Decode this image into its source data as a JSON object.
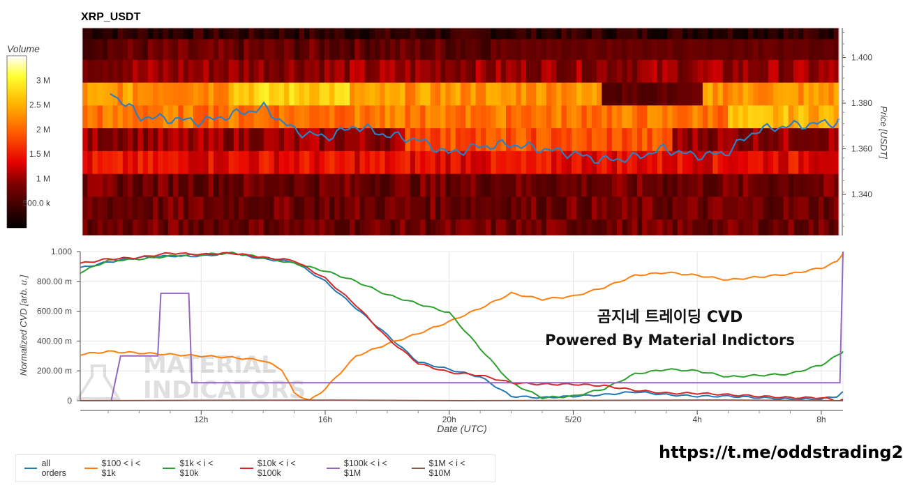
{
  "heatmap": {
    "title": "XRP_USDT",
    "colorbar": {
      "label": "Volume",
      "ticks": [
        "3 M",
        "2.5 M",
        "2 M",
        "1.5 M",
        "1 M",
        "500.0 k"
      ],
      "tick_values": [
        3.0,
        2.5,
        2.0,
        1.5,
        1.0,
        0.5
      ]
    },
    "price_axis": {
      "label": "Price [USDT]",
      "ticks": [
        "1.400",
        "1.380",
        "1.360",
        "1.340"
      ],
      "tick_values": [
        1.4,
        1.38,
        1.36,
        1.34
      ],
      "range": [
        1.322,
        1.413
      ]
    }
  },
  "cvd": {
    "xlabel": "Date (UTC)",
    "ylabel": "Normalized CVD [arb. u.]",
    "yticks": [
      "1.000",
      "800.00 m",
      "600.00 m",
      "400.00 m",
      "200.00 m",
      "0"
    ],
    "ytick_values": [
      1.0,
      0.8,
      0.6,
      0.4,
      0.2,
      0.0
    ],
    "xticks": [
      "12h",
      "16h",
      "20h",
      "5/20",
      "4h",
      "8h"
    ],
    "xtick_values": [
      12,
      16,
      20,
      24,
      28,
      32
    ]
  },
  "watermark": {
    "title": "곰지네 트레이딩 CVD",
    "subtitle": "Powered By Material Indictors",
    "logo_line1": "MATERIAL",
    "logo_line2": "INDICATORS"
  },
  "url": "https://t.me/oddstrading2",
  "legend": [
    {
      "label": "all orders",
      "color": "#1f77b4"
    },
    {
      "label": "$100 < i < $1k",
      "color": "#ff7f0e"
    },
    {
      "label": "$1k < i < $10k",
      "color": "#2ca02c"
    },
    {
      "label": "$10k < i < $100k",
      "color": "#d62728"
    },
    {
      "label": "$100k < i < $1M",
      "color": "#9467bd"
    },
    {
      "label": "$1M < i < $10M",
      "color": "#8c564b"
    }
  ],
  "chart_data": [
    {
      "type": "line",
      "title": "XRP_USDT",
      "ylabel": "Price [USDT]",
      "x": [
        9,
        10,
        11,
        12,
        13,
        14,
        15,
        16,
        17,
        18,
        19,
        20,
        21,
        22,
        23,
        24,
        25,
        26,
        27,
        28,
        29,
        30,
        31,
        32,
        33
      ],
      "series": [
        {
          "values": [
            1.385,
            1.374,
            1.373,
            1.372,
            1.375,
            1.378,
            1.368,
            1.365,
            1.37,
            1.366,
            1.364,
            1.358,
            1.361,
            1.362,
            1.36,
            1.358,
            1.355,
            1.356,
            1.36,
            1.357,
            1.358,
            1.368,
            1.37,
            1.371,
            1.372
          ]
        }
      ],
      "ylim": [
        1.322,
        1.413
      ],
      "background": "heatmap",
      "volume_range": [
        0,
        3.5
      ]
    },
    {
      "type": "line",
      "xlabel": "Date (UTC)",
      "ylabel": "Normalized CVD [arb. u.]",
      "ylim": [
        0,
        1.0
      ],
      "xlim": [
        8.1,
        32.7
      ],
      "series": [
        {
          "name": "all orders",
          "color": "#1f77b4",
          "x": [
            8.1,
            9,
            10,
            11,
            12,
            13,
            14,
            15,
            16,
            17,
            18,
            19,
            20,
            21,
            22,
            23,
            24,
            25,
            26,
            27,
            28,
            29,
            30,
            31,
            32,
            32.5,
            32.7
          ],
          "values": [
            0.89,
            0.93,
            0.96,
            0.97,
            0.97,
            0.99,
            0.95,
            0.93,
            0.8,
            0.62,
            0.44,
            0.26,
            0.21,
            0.16,
            0.03,
            0.02,
            0.03,
            0.04,
            0.06,
            0.04,
            0.03,
            0.03,
            0.02,
            0.01,
            0.01,
            0.03,
            0.06
          ]
        },
        {
          "name": "$100 < i < $1k",
          "color": "#ff7f0e",
          "x": [
            8.1,
            9,
            10,
            11,
            12,
            13,
            14,
            14.6,
            15,
            15.5,
            16,
            17,
            18,
            19,
            20,
            21,
            22,
            23,
            24,
            25,
            26,
            27,
            28,
            29,
            30,
            31,
            32,
            32.5,
            32.7
          ],
          "values": [
            0.31,
            0.33,
            0.32,
            0.31,
            0.3,
            0.29,
            0.27,
            0.21,
            0.05,
            0.0,
            0.08,
            0.3,
            0.38,
            0.45,
            0.53,
            0.62,
            0.72,
            0.68,
            0.7,
            0.76,
            0.84,
            0.86,
            0.84,
            0.81,
            0.83,
            0.85,
            0.89,
            0.93,
            0.99
          ]
        },
        {
          "name": "$1k < i < $10k",
          "color": "#2ca02c",
          "x": [
            8.1,
            9,
            10,
            11,
            12,
            13,
            14,
            15,
            16,
            17,
            18,
            19,
            20,
            21,
            22,
            23,
            24,
            25,
            26,
            27,
            28,
            29,
            30,
            31,
            32,
            32.5,
            32.7
          ],
          "values": [
            0.86,
            0.94,
            0.95,
            0.97,
            0.98,
            0.99,
            0.96,
            0.92,
            0.87,
            0.8,
            0.71,
            0.65,
            0.59,
            0.35,
            0.12,
            0.02,
            0.03,
            0.08,
            0.18,
            0.21,
            0.2,
            0.16,
            0.17,
            0.18,
            0.24,
            0.3,
            0.33
          ]
        },
        {
          "name": "$10k < i < $100k",
          "color": "#d62728",
          "x": [
            8.1,
            9,
            10,
            11,
            12,
            13,
            14,
            15,
            16,
            17,
            18,
            19,
            20,
            21,
            22,
            23,
            24,
            25,
            26,
            27,
            28,
            29,
            30,
            31,
            32,
            32.5,
            32.7
          ],
          "values": [
            0.92,
            0.95,
            0.96,
            0.99,
            0.98,
            0.99,
            0.96,
            0.94,
            0.82,
            0.64,
            0.42,
            0.25,
            0.19,
            0.17,
            0.12,
            0.11,
            0.11,
            0.1,
            0.07,
            0.05,
            0.05,
            0.04,
            0.03,
            0.02,
            0.02,
            0.0,
            0.01
          ]
        },
        {
          "name": "$100k < i < $1M",
          "color": "#9467bd",
          "x": [
            8.1,
            8.6,
            9.1,
            9.4,
            10.6,
            10.7,
            11.6,
            11.7,
            31.9,
            32.0,
            32.4,
            32.6,
            32.7
          ],
          "values": [
            0.0,
            0.0,
            0.0,
            0.3,
            0.3,
            0.72,
            0.72,
            0.12,
            0.12,
            0.12,
            0.12,
            0.12,
            1.0
          ]
        },
        {
          "name": "$1M < i < $10M",
          "color": "#8c564b",
          "x": [
            8.1,
            32.7
          ],
          "values": [
            0.0,
            0.0
          ]
        }
      ]
    }
  ]
}
